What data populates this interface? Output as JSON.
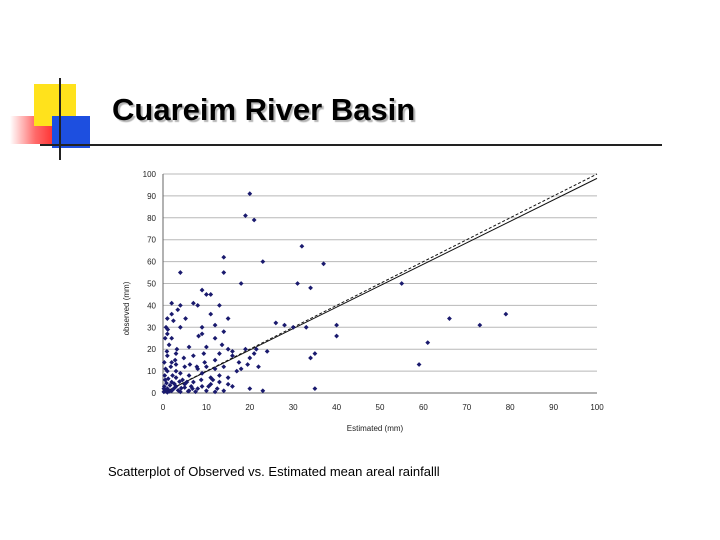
{
  "title": "Cuareim River Basin",
  "caption": "Scatterplot of Observed vs. Estimated mean areal rainfalll",
  "colors": {
    "accent_yellow": "#ffe21c",
    "accent_blue": "#1d4fe0",
    "accent_red": "#ff2a2a",
    "points": "#1a1a6e"
  },
  "chart_data": {
    "type": "scatter",
    "xlabel": "Estimated (mm)",
    "ylabel": "observed (mm)",
    "xlim": [
      0,
      100
    ],
    "ylim": [
      0,
      100
    ],
    "xticks": [
      "0",
      "10",
      "20",
      "30",
      "40",
      "50",
      "60",
      "70",
      "80",
      "90",
      "100"
    ],
    "yticks": [
      "0",
      "10",
      "20",
      "30",
      "40",
      "50",
      "60",
      "70",
      "80",
      "90",
      "100"
    ],
    "grid": "horizontal",
    "trendlines": [
      {
        "style": "dashed",
        "x": [
          0,
          100
        ],
        "y": [
          0,
          100
        ]
      },
      {
        "style": "solid",
        "x": [
          0,
          100
        ],
        "y": [
          0,
          98
        ]
      }
    ],
    "points": [
      [
        20,
        91
      ],
      [
        19,
        81
      ],
      [
        21,
        79
      ],
      [
        32,
        67
      ],
      [
        14,
        62
      ],
      [
        23,
        60
      ],
      [
        37,
        59
      ],
      [
        4,
        55
      ],
      [
        14,
        55
      ],
      [
        18,
        50
      ],
      [
        31,
        50
      ],
      [
        34,
        48
      ],
      [
        55,
        50
      ],
      [
        9,
        47
      ],
      [
        10,
        45
      ],
      [
        11,
        45
      ],
      [
        2,
        41
      ],
      [
        7,
        41
      ],
      [
        8,
        40
      ],
      [
        4,
        40
      ],
      [
        1,
        34
      ],
      [
        2,
        36
      ],
      [
        4,
        30
      ],
      [
        9,
        30
      ],
      [
        12,
        31
      ],
      [
        15,
        34
      ],
      [
        26,
        32
      ],
      [
        33,
        30
      ],
      [
        40,
        31
      ],
      [
        28,
        31
      ],
      [
        30,
        30
      ],
      [
        66,
        34
      ],
      [
        73,
        31
      ],
      [
        79,
        36
      ],
      [
        1,
        27
      ],
      [
        9,
        27
      ],
      [
        12,
        25
      ],
      [
        14,
        28
      ],
      [
        2,
        25
      ],
      [
        40,
        26
      ],
      [
        6,
        21
      ],
      [
        10,
        21
      ],
      [
        15,
        20
      ],
      [
        16,
        19
      ],
      [
        19,
        20
      ],
      [
        21,
        18
      ],
      [
        24,
        19
      ],
      [
        35,
        18
      ],
      [
        34,
        16
      ],
      [
        61,
        23
      ],
      [
        59,
        13
      ],
      [
        1,
        17
      ],
      [
        3,
        18
      ],
      [
        7,
        17
      ],
      [
        12,
        15
      ],
      [
        13,
        18
      ],
      [
        16,
        17
      ],
      [
        20,
        16
      ],
      [
        2,
        14
      ],
      [
        3,
        13
      ],
      [
        5,
        12
      ],
      [
        8,
        11
      ],
      [
        10,
        12
      ],
      [
        12,
        11
      ],
      [
        14,
        12
      ],
      [
        1,
        10
      ],
      [
        4,
        9
      ],
      [
        6,
        8
      ],
      [
        9,
        9
      ],
      [
        11,
        7
      ],
      [
        13,
        8
      ],
      [
        15,
        7
      ],
      [
        17,
        10
      ],
      [
        18,
        11
      ],
      [
        22,
        12
      ],
      [
        0.5,
        6
      ],
      [
        2,
        5
      ],
      [
        3,
        7
      ],
      [
        5,
        4
      ],
      [
        7,
        5
      ],
      [
        9,
        3
      ],
      [
        11,
        4
      ],
      [
        13,
        5
      ],
      [
        15,
        4
      ],
      [
        16,
        3
      ],
      [
        20,
        2
      ],
      [
        23,
        1
      ],
      [
        35,
        2
      ],
      [
        0.3,
        3
      ],
      [
        1,
        2
      ],
      [
        2,
        1
      ],
      [
        3,
        3
      ],
      [
        4,
        0.5
      ],
      [
        6,
        1
      ],
      [
        8,
        2
      ],
      [
        10,
        1
      ],
      [
        12,
        0.5
      ],
      [
        14,
        1
      ],
      [
        0.2,
        0.5
      ],
      [
        0.5,
        1.5
      ],
      [
        1.5,
        0.8
      ],
      [
        2.5,
        2
      ],
      [
        3.5,
        1.2
      ],
      [
        5,
        2.5
      ],
      [
        6.5,
        3
      ],
      [
        7.5,
        0.6
      ],
      [
        0.8,
        4.5
      ],
      [
        1.2,
        6.5
      ],
      [
        2.2,
        8
      ],
      [
        3,
        10
      ],
      [
        4.5,
        6
      ],
      [
        5.5,
        5
      ],
      [
        0.4,
        8
      ],
      [
        0.6,
        11
      ],
      [
        1.8,
        12
      ],
      [
        2.8,
        15
      ],
      [
        3.2,
        20
      ],
      [
        0.9,
        19
      ],
      [
        1.4,
        22
      ],
      [
        0.7,
        30
      ],
      [
        2.4,
        33
      ],
      [
        4.8,
        16
      ],
      [
        6.2,
        13
      ],
      [
        7.8,
        12
      ],
      [
        8.8,
        6
      ],
      [
        9.6,
        14
      ],
      [
        0.3,
        14
      ],
      [
        0.2,
        2
      ],
      [
        1,
        0.3
      ],
      [
        1.6,
        3.5
      ],
      [
        2.6,
        4.2
      ],
      [
        3.8,
        5.2
      ],
      [
        4.2,
        2.2
      ],
      [
        5.8,
        0.8
      ],
      [
        6.8,
        2
      ],
      [
        10.5,
        3
      ],
      [
        11.5,
        6
      ],
      [
        12.5,
        2
      ],
      [
        0.5,
        25
      ],
      [
        1.1,
        29
      ],
      [
        3.4,
        38
      ],
      [
        5.2,
        34
      ],
      [
        8.2,
        26
      ],
      [
        9.4,
        18
      ],
      [
        13.6,
        22
      ],
      [
        17.5,
        14
      ],
      [
        19.5,
        13
      ],
      [
        21.5,
        20
      ],
      [
        11,
        36
      ],
      [
        13,
        40
      ]
    ]
  }
}
